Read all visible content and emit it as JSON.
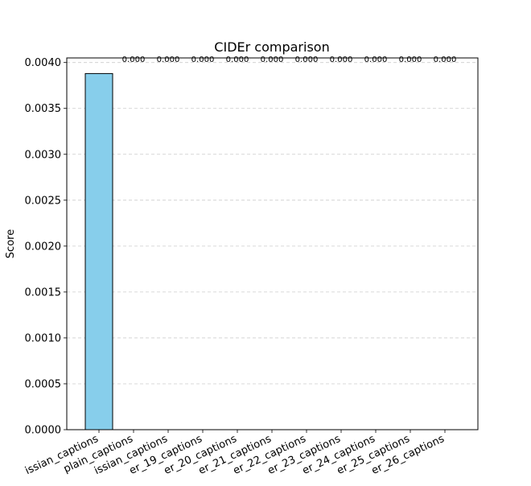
{
  "chart_data": {
    "type": "bar",
    "title": "CIDEr comparison",
    "xlabel": "",
    "ylabel": "Score",
    "ylim": [
      0,
      0.00405
    ],
    "yticks": [
      "0.0000",
      "0.0005",
      "0.0010",
      "0.0015",
      "0.0020",
      "0.0025",
      "0.0030",
      "0.0035",
      "0.0040"
    ],
    "grid": "horizontal dashed",
    "categories": [
      "issian_captions",
      "plain_captions",
      "issian_captions",
      "er_19_captions",
      "er_20_captions",
      "er_21_captions",
      "er_22_captions",
      "er_23_captions",
      "er_24_captions",
      "er_25_captions",
      "er_26_captions"
    ],
    "values": [
      0.00388,
      0,
      0,
      0,
      0,
      0,
      0,
      0,
      0,
      0,
      0
    ],
    "data_labels": [
      "",
      "0.000",
      "0.000",
      "0.000",
      "0.000",
      "0.000",
      "0.000",
      "0.000",
      "0.000",
      "0.000",
      "0.000"
    ],
    "colors": {
      "bar_fill": "#87CEEB",
      "bar_edge": "#000000",
      "grid": "#cccccc"
    }
  }
}
